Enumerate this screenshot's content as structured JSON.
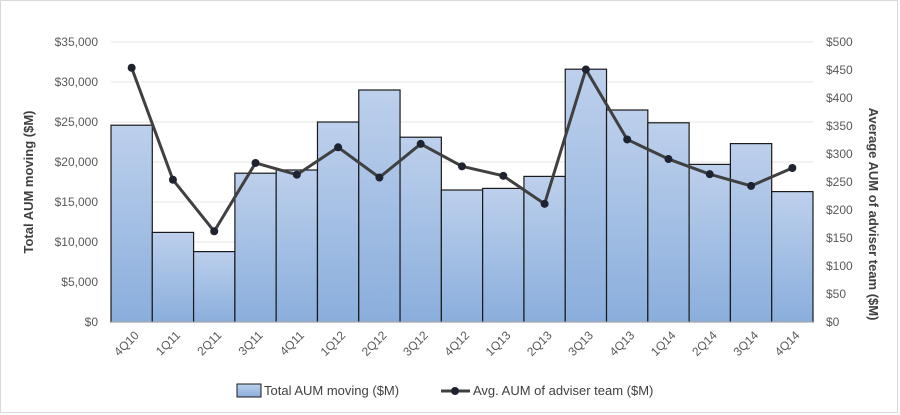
{
  "chart_data": {
    "type": "bar",
    "categories": [
      "4Q10",
      "1Q11",
      "2Q11",
      "3Q11",
      "4Q11",
      "1Q12",
      "2Q12",
      "3Q12",
      "4Q12",
      "1Q13",
      "2Q13",
      "3Q13",
      "4Q13",
      "1Q14",
      "2Q14",
      "3Q14",
      "4Q14"
    ],
    "series": [
      {
        "name": "Total AUM moving ($M)",
        "type": "bar",
        "axis": "left",
        "values": [
          24600,
          11200,
          8800,
          18600,
          19000,
          25000,
          29000,
          23100,
          16500,
          16700,
          18200,
          31600,
          26500,
          24900,
          19700,
          22300,
          16300
        ]
      },
      {
        "name": "Avg. AUM of adviser team ($M)",
        "type": "line",
        "axis": "right",
        "values": [
          454,
          254,
          162,
          284,
          263,
          312,
          258,
          318,
          278,
          261,
          211,
          451,
          326,
          291,
          264,
          243,
          275
        ]
      }
    ],
    "ylabel": "Total AUM moving ($M)",
    "y2label": "Average AUM of adviser team ($M)",
    "ylim": [
      0,
      35000
    ],
    "y2lim": [
      0,
      500
    ],
    "yticks": [
      "$0",
      "$5,000",
      "$10,000",
      "$15,000",
      "$20,000",
      "$25,000",
      "$30,000",
      "$35,000"
    ],
    "y2ticks": [
      "$0",
      "$50",
      "$100",
      "$150",
      "$200",
      "$250",
      "$300",
      "$350",
      "$400",
      "$450",
      "$500"
    ],
    "grid": true,
    "legend": "bottom",
    "colors": {
      "bar_fill_top": "#bdd0ec",
      "bar_fill_bottom": "#8aaedc",
      "bar_stroke": "#1a1a1a",
      "line": "#404040",
      "marker": "#1f2330",
      "gridline": "#e6e6e6"
    }
  }
}
